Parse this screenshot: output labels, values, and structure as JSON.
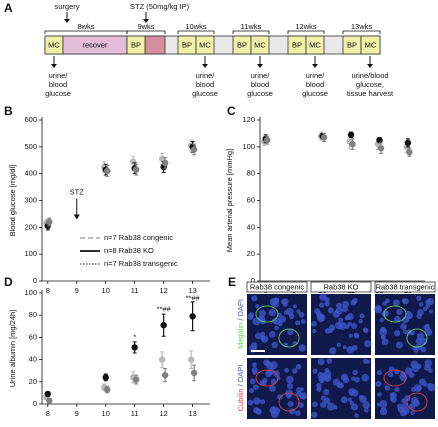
{
  "timeline": {
    "panel": "A",
    "top_labels": [
      "surgery",
      "STZ (50mg/kg IP)"
    ],
    "weeks": [
      "8wks",
      "9wks",
      "10wks",
      "11wks",
      "12wks",
      "13wks"
    ],
    "boxes": [
      "MC",
      "recover",
      "BP",
      "BP",
      "MC",
      "BP",
      "MC",
      "BP",
      "MC",
      "BP",
      "MC"
    ],
    "outcomes": [
      [
        "urine/",
        "blood",
        "glucose"
      ],
      [
        "urine/",
        "blood",
        "glucose"
      ],
      [
        "urine/",
        "blood",
        "glucose"
      ],
      [
        "urine/",
        "blood",
        "glucose"
      ],
      [
        "urine/blood",
        "glucose,",
        "tissue harvest"
      ]
    ]
  },
  "chart_data": [
    {
      "panel": "B",
      "type": "scatter",
      "y_label": "Blood glucose [mg/dl]",
      "x": [
        8,
        10,
        11,
        12,
        13
      ],
      "xlim": [
        7.8,
        13.6
      ],
      "xticks": [
        8,
        9,
        10,
        11,
        12,
        13
      ],
      "ylim": [
        0,
        600
      ],
      "yticks": [
        0,
        100,
        200,
        300,
        400,
        500,
        600
      ],
      "annotations": [
        {
          "text": "STZ",
          "x": 9,
          "y": 330,
          "arrow": true
        }
      ],
      "series": [
        {
          "name": "n=7 Rab38 congenic",
          "color": "#b8b8b8",
          "dash": "dashed",
          "values": [
            215,
            425,
            445,
            455,
            505
          ],
          "errors": [
            15,
            20,
            20,
            20,
            20
          ]
        },
        {
          "name": "n=8 Rab38 KO",
          "color": "#111111",
          "dash": "solid",
          "values": [
            205,
            415,
            420,
            425,
            500
          ],
          "errors": [
            15,
            20,
            20,
            20,
            20
          ]
        },
        {
          "name": "n=7 Rab38 transgenic",
          "color": "#808080",
          "dash": "dotted",
          "values": [
            220,
            410,
            415,
            440,
            490
          ],
          "errors": [
            15,
            20,
            20,
            20,
            20
          ]
        }
      ]
    },
    {
      "panel": "C",
      "type": "scatter",
      "y_label": "Mean arterial pressure [mmHg]",
      "x": [
        8,
        10,
        11,
        12,
        13
      ],
      "xlim": [
        7.8,
        13.6
      ],
      "xticks": [
        8,
        9,
        10,
        11,
        12,
        13
      ],
      "ylim": [
        0,
        120
      ],
      "yticks": [
        0,
        20,
        40,
        60,
        80,
        100,
        120
      ],
      "series": [
        {
          "color": "#b8b8b8",
          "values": [
            104,
            108,
            104,
            102,
            100
          ],
          "errors": [
            3,
            3,
            5,
            4,
            4
          ]
        },
        {
          "color": "#111111",
          "values": [
            106,
            108,
            109,
            105,
            103
          ],
          "errors": [
            3,
            2,
            2,
            2,
            3
          ]
        },
        {
          "color": "#808080",
          "values": [
            105,
            107,
            102,
            99,
            96
          ],
          "errors": [
            3,
            3,
            4,
            4,
            3
          ]
        }
      ]
    },
    {
      "panel": "D",
      "type": "scatter",
      "y_label": "Urine albumin [mg/24h]",
      "x": [
        8,
        10,
        11,
        12,
        13
      ],
      "xlim": [
        7.8,
        13.6
      ],
      "xticks": [
        8,
        9,
        10,
        11,
        12,
        13
      ],
      "ylim": [
        0,
        100
      ],
      "yticks": [
        0,
        20,
        40,
        60,
        80,
        100
      ],
      "annotations": [
        {
          "text": "*",
          "x": 11,
          "y": 60
        },
        {
          "text": "**##",
          "x": 12,
          "y": 85
        },
        {
          "text": "**##",
          "x": 13,
          "y": 95
        }
      ],
      "series": [
        {
          "color": "#b8b8b8",
          "values": [
            6,
            15,
            24,
            40,
            40
          ],
          "errors": [
            2,
            3,
            5,
            7,
            8
          ]
        },
        {
          "color": "#111111",
          "values": [
            9,
            24,
            51,
            71,
            79
          ],
          "errors": [
            2,
            3,
            5,
            10,
            13
          ]
        },
        {
          "color": "#808080",
          "values": [
            3,
            13,
            22,
            26,
            28
          ],
          "errors": [
            1,
            3,
            4,
            6,
            7
          ]
        }
      ]
    }
  ],
  "images": {
    "panel": "E",
    "columns": [
      "Rab38 congenic",
      "Rab38 KO",
      "Rab38 transgenic"
    ],
    "rows": [
      [
        "Megalin",
        "/ DAPI"
      ],
      [
        "Cubilin",
        "/ DAPI"
      ]
    ]
  }
}
